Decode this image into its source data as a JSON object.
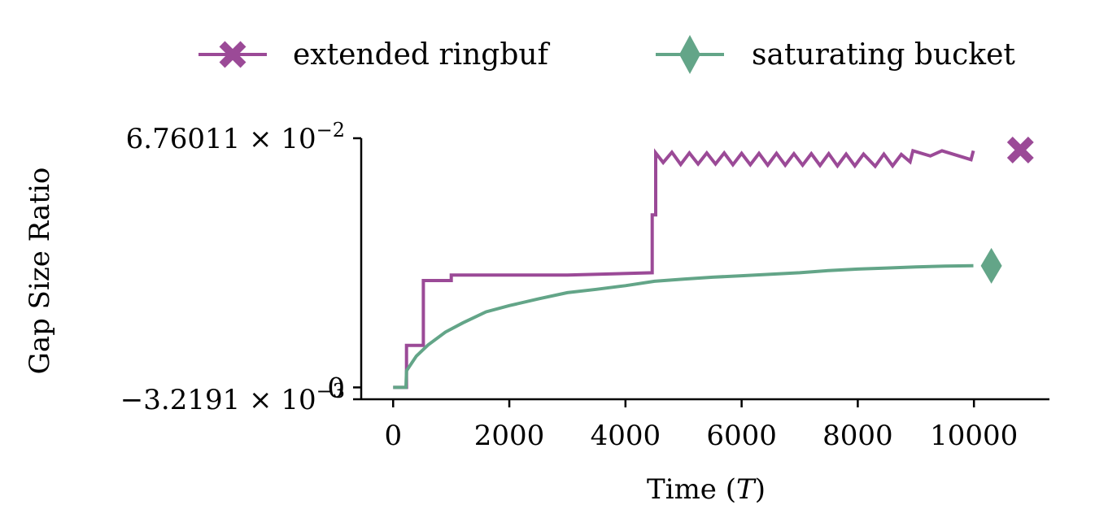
{
  "chart_data": {
    "type": "line",
    "xlabel": "Time (T)",
    "xlabel_parts": {
      "prefix": "Time (",
      "italic": "T",
      "suffix": ")"
    },
    "ylabel": "Gap Size Ratio",
    "xlim": [
      -550,
      11300
    ],
    "ylim": [
      -0.0032191,
      0.0676011
    ],
    "x_ticks": [
      0,
      2000,
      4000,
      6000,
      8000,
      10000
    ],
    "x_tick_labels": [
      "0",
      "2000",
      "4000",
      "6000",
      "8000",
      "10000"
    ],
    "y_ticks": [
      -0.0032191,
      0,
      0.0676011
    ],
    "y_tick_labels": [
      {
        "mantissa": "−3.2191 × 10",
        "exp": "−3"
      },
      {
        "mantissa": "0",
        "exp": ""
      },
      {
        "mantissa": "6.76011 × 10",
        "exp": "−2"
      }
    ],
    "legend_position": "top",
    "series": [
      {
        "name": "extended ringbuf",
        "color": "#9B4A97",
        "marker": "x-icon",
        "end_marker_x": 10800,
        "end_marker_y": 0.0644,
        "points": [
          [
            0,
            0
          ],
          [
            230,
            0
          ],
          [
            230,
            0.0114
          ],
          [
            520,
            0.0114
          ],
          [
            520,
            0.029
          ],
          [
            1000,
            0.029
          ],
          [
            1000,
            0.0305
          ],
          [
            3000,
            0.0305
          ],
          [
            4460,
            0.0311
          ],
          [
            4460,
            0.0468
          ],
          [
            4520,
            0.0468
          ],
          [
            4520,
            0.0636
          ],
          [
            4650,
            0.061
          ],
          [
            4800,
            0.0638
          ],
          [
            4950,
            0.0605
          ],
          [
            5100,
            0.0636
          ],
          [
            5250,
            0.0606
          ],
          [
            5400,
            0.0636
          ],
          [
            5550,
            0.0606
          ],
          [
            5700,
            0.0636
          ],
          [
            5850,
            0.0604
          ],
          [
            6000,
            0.0635
          ],
          [
            6150,
            0.0604
          ],
          [
            6300,
            0.0635
          ],
          [
            6450,
            0.0603
          ],
          [
            6600,
            0.0635
          ],
          [
            6750,
            0.0603
          ],
          [
            6900,
            0.0634
          ],
          [
            7050,
            0.0603
          ],
          [
            7200,
            0.0634
          ],
          [
            7350,
            0.0602
          ],
          [
            7500,
            0.0634
          ],
          [
            7650,
            0.0601
          ],
          [
            7800,
            0.0633
          ],
          [
            7950,
            0.0601
          ],
          [
            8100,
            0.0633
          ],
          [
            8300,
            0.06
          ],
          [
            8450,
            0.0633
          ],
          [
            8600,
            0.0601
          ],
          [
            8750,
            0.0632
          ],
          [
            8900,
            0.0612
          ],
          [
            8950,
            0.0642
          ],
          [
            9250,
            0.0628
          ],
          [
            9450,
            0.0642
          ],
          [
            9950,
            0.0618
          ],
          [
            9990,
            0.0642
          ]
        ]
      },
      {
        "name": "saturating bucket",
        "color": "#63A588",
        "marker": "diamond-icon",
        "end_marker_x": 10300,
        "end_marker_y": 0.033,
        "points": [
          [
            0,
            0
          ],
          [
            220,
            0
          ],
          [
            230,
            0.0045
          ],
          [
            400,
            0.0085
          ],
          [
            600,
            0.0115
          ],
          [
            900,
            0.015
          ],
          [
            1200,
            0.0175
          ],
          [
            1600,
            0.0205
          ],
          [
            2000,
            0.0222
          ],
          [
            2500,
            0.024
          ],
          [
            3000,
            0.0257
          ],
          [
            3500,
            0.0266
          ],
          [
            4000,
            0.0276
          ],
          [
            4500,
            0.0288
          ],
          [
            5000,
            0.0294
          ],
          [
            5500,
            0.0299
          ],
          [
            6000,
            0.0303
          ],
          [
            6500,
            0.0307
          ],
          [
            7000,
            0.0311
          ],
          [
            7500,
            0.0317
          ],
          [
            8000,
            0.0321
          ],
          [
            8500,
            0.0324
          ],
          [
            9000,
            0.0327
          ],
          [
            9500,
            0.0329
          ],
          [
            9990,
            0.033
          ]
        ]
      }
    ]
  }
}
